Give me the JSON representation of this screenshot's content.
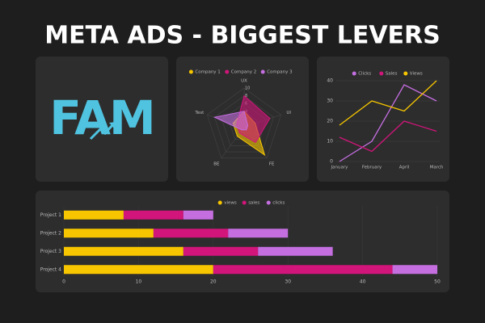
{
  "title": "META ADS - BIGGEST LEVERS",
  "logo": "FAM",
  "chart_data": [
    {
      "type": "radar",
      "categories": [
        "UX",
        "UI",
        "FE",
        "BE",
        "Test"
      ],
      "rlim": [
        0,
        10
      ],
      "rticks": [
        0,
        2,
        4,
        6,
        8,
        10
      ],
      "series": [
        {
          "name": "Company 1",
          "color": "#f7c600",
          "values": [
            4,
            3,
            9,
            3,
            3
          ]
        },
        {
          "name": "Company 2",
          "color": "#d1157a",
          "values": [
            8,
            7,
            5,
            2,
            2
          ]
        },
        {
          "name": "Company 3",
          "color": "#c46ee0",
          "values": [
            4,
            1,
            1,
            1,
            8
          ]
        }
      ]
    },
    {
      "type": "line",
      "categories": [
        "January",
        "February",
        "April",
        "March"
      ],
      "ylim": [
        0,
        40
      ],
      "yticks": [
        0,
        10,
        20,
        30,
        40
      ],
      "grid": true,
      "series": [
        {
          "name": "Clicks",
          "color": "#c46ee0",
          "values": [
            0,
            10,
            38,
            30
          ]
        },
        {
          "name": "Sales",
          "color": "#d1157a",
          "values": [
            12,
            5,
            20,
            15
          ]
        },
        {
          "name": "Views",
          "color": "#f7c600",
          "values": [
            18,
            30,
            25,
            40
          ]
        }
      ]
    },
    {
      "type": "bar",
      "orientation": "horizontal",
      "stacked": true,
      "categories": [
        "Project 1",
        "Project 2",
        "Project 3",
        "Project 4"
      ],
      "xlim": [
        0,
        50
      ],
      "xticks": [
        0,
        10,
        20,
        30,
        40,
        50
      ],
      "grid": true,
      "series": [
        {
          "name": "views",
          "color": "#f7c600",
          "values": [
            8,
            12,
            16,
            20
          ]
        },
        {
          "name": "sales",
          "color": "#d1157a",
          "values": [
            8,
            10,
            10,
            24
          ]
        },
        {
          "name": "clicks",
          "color": "#c46ee0",
          "values": [
            4,
            8,
            10,
            6
          ]
        }
      ]
    }
  ]
}
